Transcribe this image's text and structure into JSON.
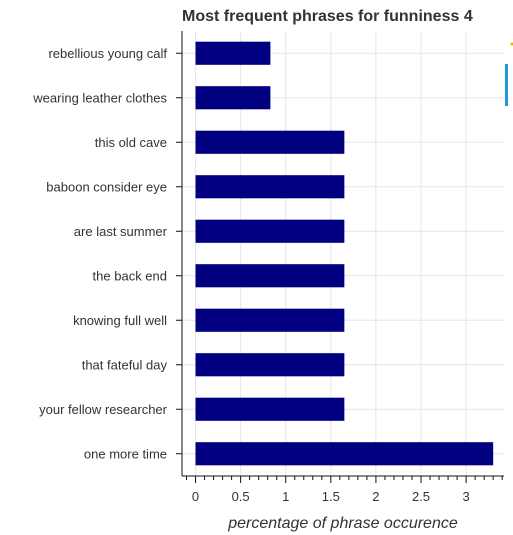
{
  "chart_data": {
    "type": "bar",
    "orientation": "horizontal",
    "title": "Most frequent phrases for funniness 4",
    "xlabel": "percentage of phrase occurence",
    "ylabel": "",
    "categories": [
      "rebellious young calf",
      "wearing leather clothes",
      "this old cave",
      "baboon consider eye",
      "are last summer",
      "the back end",
      "knowing full well",
      "that fateful day",
      "your fellow researcher",
      "one more time"
    ],
    "values": [
      0.83,
      0.83,
      1.65,
      1.65,
      1.65,
      1.65,
      1.65,
      1.65,
      1.65,
      3.3
    ],
    "xlim": [
      -0.15,
      3.42
    ],
    "xticks": [
      0,
      0.5,
      1,
      1.5,
      2,
      2.5,
      3
    ],
    "xtick_labels": [
      "0",
      "0.5",
      "1",
      "1.5",
      "2",
      "2.5",
      "3"
    ],
    "bar_color": "#000080",
    "grid": true,
    "legend": "none"
  },
  "toolbar_accent_color": "#1f9ad6"
}
